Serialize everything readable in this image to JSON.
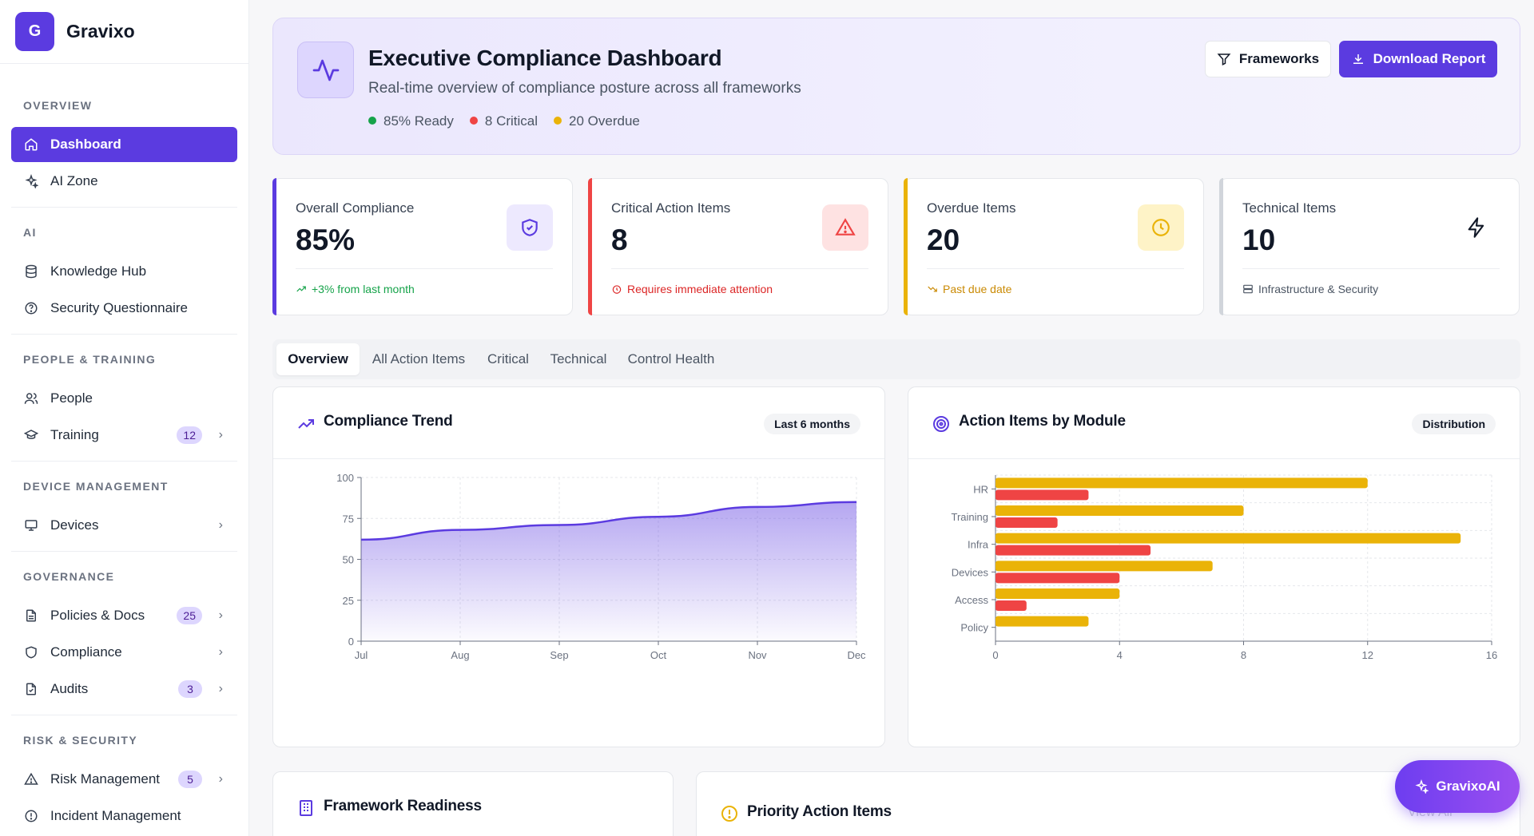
{
  "brand": {
    "logo_letter": "G",
    "name": "Gravixo"
  },
  "sidebar": {
    "sections": [
      {
        "title": "OVERVIEW"
      },
      {
        "title": "AI"
      },
      {
        "title": "PEOPLE & TRAINING"
      },
      {
        "title": "DEVICE MANAGEMENT"
      },
      {
        "title": "GOVERNANCE"
      },
      {
        "title": "RISK & SECURITY"
      }
    ],
    "items": [
      {
        "label": "Dashboard",
        "icon": "home-icon",
        "active": true
      },
      {
        "label": "AI Zone",
        "icon": "sparkles-icon"
      },
      {
        "label": "Knowledge Hub",
        "icon": "database-icon"
      },
      {
        "label": "Security Questionnaire",
        "icon": "help-circle-icon"
      },
      {
        "label": "People",
        "icon": "users-icon"
      },
      {
        "label": "Training",
        "icon": "graduation-cap-icon",
        "badge": "12"
      },
      {
        "label": "Devices",
        "icon": "monitor-icon"
      },
      {
        "label": "Policies & Docs",
        "icon": "file-text-icon",
        "badge": "25"
      },
      {
        "label": "Compliance",
        "icon": "shield-icon"
      },
      {
        "label": "Audits",
        "icon": "file-check-icon",
        "badge": "3"
      },
      {
        "label": "Risk Management",
        "icon": "alert-triangle-icon",
        "badge": "5"
      },
      {
        "label": "Incident Management",
        "icon": "alert-circle-icon"
      }
    ]
  },
  "header": {
    "title": "Executive Compliance Dashboard",
    "subtitle": "Real-time overview of compliance posture across all frameworks",
    "stats": [
      {
        "label": "85% Ready",
        "color": "#16a34a"
      },
      {
        "label": "8 Critical",
        "color": "#ef4444"
      },
      {
        "label": "20 Overdue",
        "color": "#eab308"
      }
    ],
    "frameworks_button": "Frameworks",
    "download_button": "Download Report"
  },
  "stats": [
    {
      "label": "Overall Compliance",
      "value": "85%",
      "footer": "+3% from last month",
      "accent": "#5b3be0",
      "footer_color": "#16a34a",
      "icon": "shield-check-icon"
    },
    {
      "label": "Critical Action Items",
      "value": "8",
      "footer": "Requires immediate attention",
      "accent": "#ef4444",
      "footer_color": "#dc2626",
      "icon": "alert-triangle-icon"
    },
    {
      "label": "Overdue Items",
      "value": "20",
      "footer": "Past due date",
      "accent": "#eab308",
      "footer_color": "#ca8a04",
      "icon": "clock-icon"
    },
    {
      "label": "Technical Items",
      "value": "10",
      "footer": "Infrastructure & Security",
      "accent": "#d1d5db",
      "footer_color": "#4b5563",
      "icon": "zap-icon"
    }
  ],
  "tabs": [
    "Overview",
    "All Action Items",
    "Critical",
    "Technical",
    "Control Health"
  ],
  "trend_card": {
    "title": "Compliance Trend",
    "pill": "Last 6 months"
  },
  "module_card": {
    "title": "Action Items by Module",
    "pill": "Distribution"
  },
  "framework_card": {
    "title": "Framework Readiness"
  },
  "priority_card": {
    "title": "Priority Action Items",
    "link": "View All"
  },
  "ai_button": "GravixoAI",
  "chart_data": [
    {
      "type": "area",
      "x": [
        "Jul",
        "Aug",
        "Sep",
        "Oct",
        "Nov",
        "Dec"
      ],
      "series": [
        {
          "values": [
            62,
            68,
            71,
            76,
            82,
            85
          ]
        }
      ],
      "ylim": [
        0,
        100
      ],
      "yticks": [
        0,
        25,
        50,
        75,
        100
      ],
      "color": "#5b3be0",
      "grid": true
    },
    {
      "type": "bar",
      "orientation": "horizontal",
      "categories": [
        "HR",
        "Training",
        "Infra",
        "Devices",
        "Access",
        "Policy"
      ],
      "series": [
        {
          "values": [
            12,
            8,
            15,
            7,
            4,
            3
          ],
          "color": "#eab308"
        },
        {
          "values": [
            3,
            2,
            5,
            4,
            1,
            0
          ],
          "color": "#ef4444"
        }
      ],
      "xlim": [
        0,
        16
      ],
      "xticks": [
        0,
        4,
        8,
        12,
        16
      ],
      "grid": true
    }
  ]
}
